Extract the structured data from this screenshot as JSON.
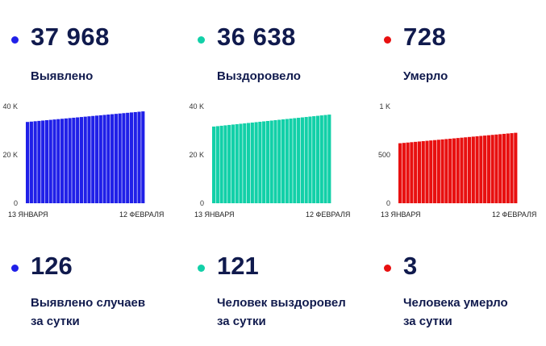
{
  "cards": [
    {
      "color": "#2020e8",
      "total": "37 968",
      "label": "Выявлено",
      "daily": "126",
      "daily_line1": "Выявлено случаев",
      "daily_line2": "за сутки"
    },
    {
      "color": "#12d0a8",
      "total": "36 638",
      "label": "Выздоровело",
      "daily": "121",
      "daily_line1": "Человек выздоровел",
      "daily_line2": "за сутки"
    },
    {
      "color": "#e81010",
      "total": "728",
      "label": "Умерло",
      "daily": "3",
      "daily_line1": "Человека умерло",
      "daily_line2": "за сутки"
    }
  ],
  "chart_data": [
    {
      "type": "bar",
      "color": "#2020e8",
      "x_start_label": "13 ЯНВАРЯ",
      "x_end_label": "12 ФЕВРАЛЯ",
      "ytick_labels": [
        "0",
        "20 K",
        "40 K"
      ],
      "yticks": [
        0,
        20000,
        40000
      ],
      "ylim": [
        0,
        40000
      ],
      "start_value": 33600,
      "end_value": 37968,
      "n_bars": 31
    },
    {
      "type": "bar",
      "color": "#12d0a8",
      "x_start_label": "13 ЯНВАРЯ",
      "x_end_label": "12 ФЕВРАЛЯ",
      "ytick_labels": [
        "0",
        "20 K",
        "40 K"
      ],
      "yticks": [
        0,
        20000,
        40000
      ],
      "ylim": [
        0,
        40000
      ],
      "start_value": 31700,
      "end_value": 36638,
      "n_bars": 31
    },
    {
      "type": "bar",
      "color": "#e81010",
      "x_start_label": "13 ЯНВАРЯ",
      "x_end_label": "12 ФЕВРАЛЯ",
      "ytick_labels": [
        "0",
        "500",
        "1 K"
      ],
      "yticks": [
        0,
        500,
        1000
      ],
      "ylim": [
        0,
        1000
      ],
      "start_value": 620,
      "end_value": 728,
      "n_bars": 31
    }
  ]
}
